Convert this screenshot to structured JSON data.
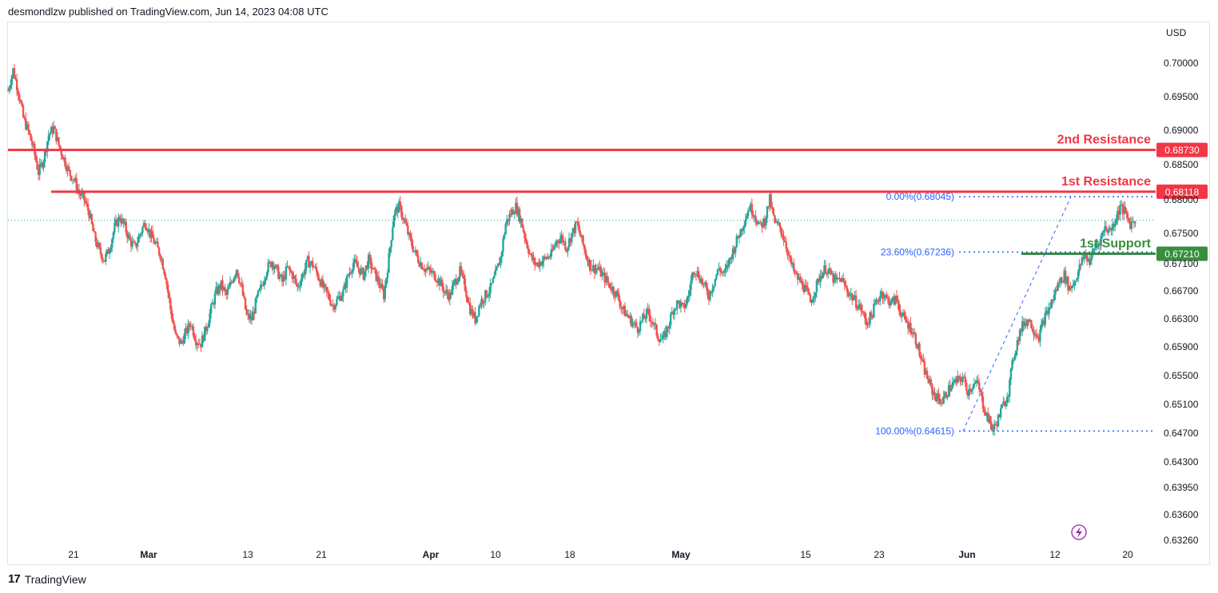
{
  "header": {
    "text": "desmondlzw published on TradingView.com, Jun 14, 2023 04:08 UTC"
  },
  "footer": {
    "logo": "17",
    "brand": "TradingView"
  },
  "colors": {
    "up": "#26a69a",
    "down": "#ef5350",
    "resistance": "#f23645",
    "support": "#388e3c",
    "fib": "#2962ff",
    "last_price_line": "#26a69a",
    "grid": "#ffffff"
  },
  "chart_data": {
    "type": "candlestick",
    "currency_label": "USD",
    "y_ticks": [
      "0.70000",
      "0.69500",
      "0.69000",
      "0.68500",
      "0.68000",
      "0.67500",
      "0.67100",
      "0.66700",
      "0.66300",
      "0.65900",
      "0.65500",
      "0.65100",
      "0.64700",
      "0.64300",
      "0.63950",
      "0.63600",
      "0.63260"
    ],
    "x_ticks": [
      "21",
      "Mar",
      "13",
      "21",
      "Apr",
      "10",
      "18",
      "May",
      "15",
      "23",
      "Jun",
      "12",
      "20"
    ],
    "levels": {
      "resistance2": {
        "label": "2nd Resistance",
        "value": 0.6873,
        "badge": "0.68730"
      },
      "resistance1": {
        "label": "1st Resistance",
        "value": 0.68118,
        "badge": "0.68118"
      },
      "support1": {
        "label": "1st Support",
        "value": 0.6721,
        "badge": "0.67210"
      }
    },
    "fibonacci": [
      {
        "label": "0.00%(0.68045)",
        "value": 0.68045
      },
      {
        "label": "23.60%(0.67236)",
        "value": 0.67236
      },
      {
        "label": "100.00%(0.64615)",
        "value": 0.64615
      }
    ],
    "last_price": 0.677,
    "series_path": [
      [
        0,
        0.696
      ],
      [
        2,
        0.699
      ],
      [
        4,
        0.696
      ],
      [
        6,
        0.692
      ],
      [
        8,
        0.69
      ],
      [
        10,
        0.6875
      ],
      [
        12,
        0.684
      ],
      [
        14,
        0.686
      ],
      [
        16,
        0.6895
      ],
      [
        18,
        0.6905
      ],
      [
        20,
        0.688
      ],
      [
        22,
        0.686
      ],
      [
        24,
        0.684
      ],
      [
        26,
        0.683
      ],
      [
        28,
        0.681
      ],
      [
        30,
        0.68
      ],
      [
        32,
        0.678
      ],
      [
        34,
        0.6745
      ],
      [
        36,
        0.6725
      ],
      [
        38,
        0.6712
      ],
      [
        40,
        0.673
      ],
      [
        42,
        0.676
      ],
      [
        44,
        0.6775
      ],
      [
        46,
        0.676
      ],
      [
        48,
        0.674
      ],
      [
        50,
        0.673
      ],
      [
        52,
        0.675
      ],
      [
        54,
        0.6768
      ],
      [
        56,
        0.675
      ],
      [
        58,
        0.6735
      ],
      [
        60,
        0.672
      ],
      [
        62,
        0.669
      ],
      [
        64,
        0.664
      ],
      [
        66,
        0.66
      ],
      [
        68,
        0.659
      ],
      [
        70,
        0.6605
      ],
      [
        72,
        0.662
      ],
      [
        74,
        0.6595
      ],
      [
        76,
        0.659
      ],
      [
        78,
        0.6612
      ],
      [
        80,
        0.664
      ],
      [
        82,
        0.6665
      ],
      [
        84,
        0.6675
      ],
      [
        86,
        0.666
      ],
      [
        88,
        0.668
      ],
      [
        90,
        0.67
      ],
      [
        92,
        0.667
      ],
      [
        94,
        0.663
      ],
      [
        96,
        0.6625
      ],
      [
        98,
        0.6655
      ],
      [
        100,
        0.6675
      ],
      [
        102,
        0.67
      ],
      [
        104,
        0.671
      ],
      [
        106,
        0.6695
      ],
      [
        108,
        0.668
      ],
      [
        110,
        0.67
      ],
      [
        112,
        0.669
      ],
      [
        114,
        0.6672
      ],
      [
        116,
        0.669
      ],
      [
        118,
        0.671
      ],
      [
        120,
        0.6705
      ],
      [
        122,
        0.669
      ],
      [
        124,
        0.6672
      ],
      [
        126,
        0.666
      ],
      [
        128,
        0.6645
      ],
      [
        130,
        0.6655
      ],
      [
        132,
        0.6665
      ],
      [
        134,
        0.669
      ],
      [
        136,
        0.6708
      ],
      [
        138,
        0.67
      ],
      [
        140,
        0.669
      ],
      [
        142,
        0.6712
      ],
      [
        144,
        0.6695
      ],
      [
        146,
        0.668
      ],
      [
        148,
        0.666
      ],
      [
        150,
        0.6715
      ],
      [
        152,
        0.678
      ],
      [
        154,
        0.679
      ],
      [
        156,
        0.677
      ],
      [
        158,
        0.6745
      ],
      [
        160,
        0.6725
      ],
      [
        162,
        0.671
      ],
      [
        164,
        0.67
      ],
      [
        166,
        0.6695
      ],
      [
        168,
        0.669
      ],
      [
        170,
        0.668
      ],
      [
        172,
        0.6665
      ],
      [
        174,
        0.666
      ],
      [
        176,
        0.668
      ],
      [
        178,
        0.6695
      ],
      [
        180,
        0.6672
      ],
      [
        182,
        0.664
      ],
      [
        184,
        0.6625
      ],
      [
        186,
        0.665
      ],
      [
        188,
        0.666
      ],
      [
        190,
        0.667
      ],
      [
        192,
        0.669
      ],
      [
        194,
        0.6715
      ],
      [
        196,
        0.6765
      ],
      [
        198,
        0.678
      ],
      [
        200,
        0.679
      ],
      [
        202,
        0.677
      ],
      [
        204,
        0.674
      ],
      [
        206,
        0.6715
      ],
      [
        208,
        0.6705
      ],
      [
        210,
        0.671
      ],
      [
        212,
        0.6715
      ],
      [
        214,
        0.672
      ],
      [
        216,
        0.674
      ],
      [
        218,
        0.6745
      ],
      [
        220,
        0.673
      ],
      [
        222,
        0.675
      ],
      [
        224,
        0.6765
      ],
      [
        226,
        0.674
      ],
      [
        228,
        0.6715
      ],
      [
        230,
        0.67
      ],
      [
        232,
        0.67
      ],
      [
        234,
        0.669
      ],
      [
        236,
        0.668
      ],
      [
        238,
        0.667
      ],
      [
        240,
        0.666
      ],
      [
        242,
        0.664
      ],
      [
        244,
        0.663
      ],
      [
        246,
        0.662
      ],
      [
        248,
        0.6612
      ],
      [
        250,
        0.6625
      ],
      [
        252,
        0.6635
      ],
      [
        254,
        0.662
      ],
      [
        256,
        0.66
      ],
      [
        258,
        0.6595
      ],
      [
        260,
        0.6615
      ],
      [
        262,
        0.664
      ],
      [
        264,
        0.665
      ],
      [
        266,
        0.664
      ],
      [
        268,
        0.666
      ],
      [
        270,
        0.67
      ],
      [
        272,
        0.669
      ],
      [
        274,
        0.6675
      ],
      [
        276,
        0.666
      ],
      [
        278,
        0.668
      ],
      [
        280,
        0.67
      ],
      [
        282,
        0.669
      ],
      [
        284,
        0.671
      ],
      [
        286,
        0.673
      ],
      [
        288,
        0.675
      ],
      [
        290,
        0.677
      ],
      [
        292,
        0.679
      ],
      [
        294,
        0.678
      ],
      [
        296,
        0.676
      ],
      [
        298,
        0.677
      ],
      [
        300,
        0.68
      ],
      [
        302,
        0.6765
      ],
      [
        304,
        0.676
      ],
      [
        306,
        0.674
      ],
      [
        308,
        0.671
      ],
      [
        310,
        0.669
      ],
      [
        312,
        0.668
      ],
      [
        314,
        0.667
      ],
      [
        316,
        0.665
      ],
      [
        318,
        0.667
      ],
      [
        320,
        0.669
      ],
      [
        322,
        0.67
      ],
      [
        324,
        0.669
      ],
      [
        326,
        0.668
      ],
      [
        328,
        0.6685
      ],
      [
        330,
        0.667
      ],
      [
        332,
        0.666
      ],
      [
        334,
        0.665
      ],
      [
        336,
        0.664
      ],
      [
        338,
        0.662
      ],
      [
        340,
        0.663
      ],
      [
        342,
        0.665
      ],
      [
        344,
        0.6665
      ],
      [
        346,
        0.6655
      ],
      [
        348,
        0.665
      ],
      [
        350,
        0.6655
      ],
      [
        352,
        0.663
      ],
      [
        354,
        0.662
      ],
      [
        356,
        0.661
      ],
      [
        358,
        0.659
      ],
      [
        360,
        0.656
      ],
      [
        362,
        0.654
      ],
      [
        364,
        0.652
      ],
      [
        366,
        0.651
      ],
      [
        368,
        0.6505
      ],
      [
        370,
        0.652
      ],
      [
        372,
        0.653
      ],
      [
        374,
        0.6535
      ],
      [
        376,
        0.654
      ],
      [
        378,
        0.652
      ],
      [
        380,
        0.653
      ],
      [
        382,
        0.653
      ],
      [
        384,
        0.65
      ],
      [
        386,
        0.648
      ],
      [
        388,
        0.6463
      ],
      [
        390,
        0.648
      ],
      [
        392,
        0.65
      ],
      [
        394,
        0.652
      ],
      [
        396,
        0.657
      ],
      [
        398,
        0.66
      ],
      [
        400,
        0.662
      ],
      [
        402,
        0.6625
      ],
      [
        404,
        0.661
      ],
      [
        406,
        0.66
      ],
      [
        408,
        0.6625
      ],
      [
        410,
        0.664
      ],
      [
        412,
        0.666
      ],
      [
        414,
        0.668
      ],
      [
        416,
        0.669
      ],
      [
        418,
        0.667
      ],
      [
        420,
        0.668
      ],
      [
        422,
        0.67
      ],
      [
        424,
        0.672
      ],
      [
        426,
        0.671
      ],
      [
        428,
        0.673
      ],
      [
        430,
        0.674
      ],
      [
        432,
        0.676
      ],
      [
        434,
        0.6755
      ],
      [
        436,
        0.677
      ],
      [
        438,
        0.679
      ],
      [
        440,
        0.678
      ],
      [
        442,
        0.6765
      ],
      [
        444,
        0.677
      ]
    ],
    "series_path_units": "day index from start of visible range, close price"
  }
}
